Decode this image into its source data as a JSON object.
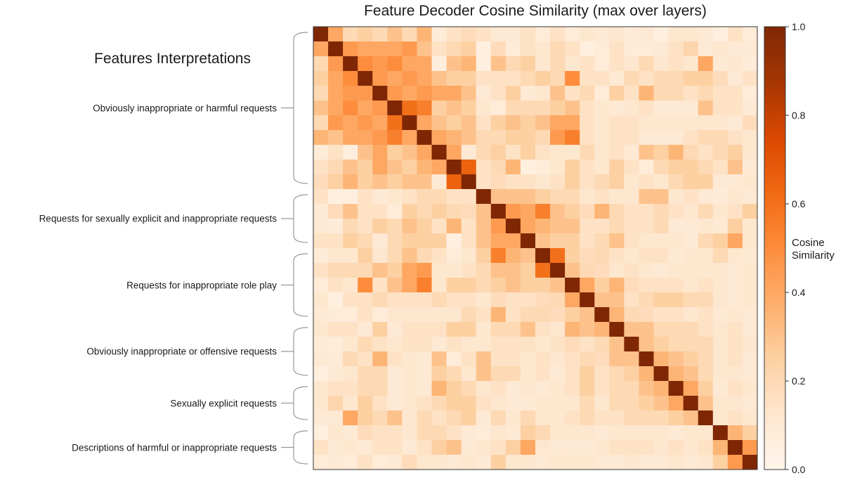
{
  "chart_data": {
    "type": "heatmap",
    "title": "Feature Decoder Cosine Similarity (max over layers)",
    "subtitle": "Features Interpretations",
    "colorbar": {
      "label": [
        "Cosine",
        "Similarity"
      ],
      "range": [
        0.0,
        1.0
      ],
      "ticks": [
        "0.0",
        "0.2",
        "0.4",
        "0.6",
        "0.8",
        "1.0"
      ],
      "colormap": "Oranges"
    },
    "n": 30,
    "groups": [
      {
        "label": "Obviously inappropriate or harmful requests",
        "start": 0,
        "end": 10
      },
      {
        "label": "Requests for sexually explicit and inappropriate requests",
        "start": 11,
        "end": 14
      },
      {
        "label": "Requests for inappropriate role play",
        "start": 15,
        "end": 19
      },
      {
        "label": "Obviously inappropriate or offensive requests",
        "start": 20,
        "end": 23
      },
      {
        "label": "Sexually explicit requests",
        "start": 24,
        "end": 26
      },
      {
        "label": "Descriptions of harmful or inappropriate requests",
        "start": 27,
        "end": 29
      }
    ],
    "matrix": [
      [
        1.0,
        0.4,
        0.2,
        0.25,
        0.2,
        0.3,
        0.2,
        0.35,
        0.08,
        0.15,
        0.18,
        0.15,
        0.1,
        0.1,
        0.15,
        0.08,
        0.15,
        0.08,
        0.12,
        0.1,
        0.12,
        0.08,
        0.1,
        0.05,
        0.12,
        0.12,
        0.1,
        0.05,
        0.15,
        0.08
      ],
      [
        0.4,
        1.0,
        0.45,
        0.4,
        0.4,
        0.4,
        0.45,
        0.3,
        0.15,
        0.2,
        0.25,
        0.05,
        0.18,
        0.08,
        0.15,
        0.12,
        0.2,
        0.15,
        0.05,
        0.08,
        0.15,
        0.08,
        0.08,
        0.1,
        0.15,
        0.22,
        0.1,
        0.12,
        0.1,
        0.1
      ],
      [
        0.2,
        0.45,
        1.0,
        0.5,
        0.45,
        0.5,
        0.4,
        0.4,
        0.06,
        0.3,
        0.35,
        0.05,
        0.3,
        0.2,
        0.25,
        0.12,
        0.2,
        0.12,
        0.15,
        0.08,
        0.15,
        0.12,
        0.2,
        0.12,
        0.15,
        0.12,
        0.4,
        0.1,
        0.12,
        0.08
      ],
      [
        0.25,
        0.4,
        0.5,
        1.0,
        0.45,
        0.4,
        0.45,
        0.4,
        0.3,
        0.25,
        0.25,
        0.15,
        0.15,
        0.15,
        0.2,
        0.25,
        0.2,
        0.5,
        0.15,
        0.15,
        0.1,
        0.2,
        0.15,
        0.2,
        0.2,
        0.25,
        0.25,
        0.18,
        0.1,
        0.15
      ],
      [
        0.2,
        0.4,
        0.45,
        0.45,
        1.0,
        0.45,
        0.4,
        0.45,
        0.4,
        0.4,
        0.3,
        0.1,
        0.15,
        0.25,
        0.1,
        0.12,
        0.3,
        0.15,
        0.2,
        0.08,
        0.25,
        0.15,
        0.35,
        0.2,
        0.2,
        0.15,
        0.2,
        0.15,
        0.15,
        0.08
      ],
      [
        0.3,
        0.4,
        0.5,
        0.4,
        0.45,
        1.0,
        0.6,
        0.55,
        0.25,
        0.3,
        0.25,
        0.12,
        0.08,
        0.2,
        0.2,
        0.2,
        0.25,
        0.3,
        0.15,
        0.12,
        0.1,
        0.12,
        0.15,
        0.1,
        0.1,
        0.1,
        0.3,
        0.15,
        0.15,
        0.1
      ],
      [
        0.2,
        0.45,
        0.4,
        0.45,
        0.4,
        0.6,
        1.0,
        0.4,
        0.3,
        0.25,
        0.3,
        0.15,
        0.25,
        0.3,
        0.25,
        0.3,
        0.4,
        0.4,
        0.15,
        0.12,
        0.15,
        0.15,
        0.12,
        0.12,
        0.12,
        0.12,
        0.12,
        0.12,
        0.1,
        0.18
      ],
      [
        0.35,
        0.3,
        0.4,
        0.4,
        0.45,
        0.55,
        0.4,
        1.0,
        0.4,
        0.35,
        0.3,
        0.2,
        0.2,
        0.25,
        0.25,
        0.2,
        0.45,
        0.55,
        0.15,
        0.12,
        0.15,
        0.15,
        0.1,
        0.1,
        0.1,
        0.15,
        0.2,
        0.2,
        0.15,
        0.12
      ],
      [
        0.08,
        0.15,
        0.06,
        0.3,
        0.4,
        0.25,
        0.3,
        0.4,
        1.0,
        0.4,
        0.1,
        0.2,
        0.25,
        0.15,
        0.25,
        0.15,
        0.12,
        0.12,
        0.2,
        0.12,
        0.15,
        0.1,
        0.3,
        0.25,
        0.35,
        0.2,
        0.15,
        0.2,
        0.25,
        0.12
      ],
      [
        0.15,
        0.2,
        0.3,
        0.25,
        0.4,
        0.3,
        0.25,
        0.35,
        0.4,
        1.0,
        0.65,
        0.15,
        0.2,
        0.35,
        0.05,
        0.08,
        0.12,
        0.25,
        0.15,
        0.12,
        0.25,
        0.15,
        0.08,
        0.2,
        0.25,
        0.25,
        0.2,
        0.15,
        0.3,
        0.1
      ],
      [
        0.18,
        0.25,
        0.35,
        0.25,
        0.3,
        0.25,
        0.3,
        0.3,
        0.1,
        0.65,
        1.0,
        0.15,
        0.18,
        0.15,
        0.15,
        0.12,
        0.15,
        0.25,
        0.15,
        0.2,
        0.25,
        0.12,
        0.15,
        0.12,
        0.2,
        0.25,
        0.25,
        0.1,
        0.1,
        0.12
      ],
      [
        0.15,
        0.05,
        0.05,
        0.15,
        0.1,
        0.12,
        0.15,
        0.2,
        0.2,
        0.15,
        0.15,
        1.0,
        0.3,
        0.3,
        0.3,
        0.25,
        0.2,
        0.2,
        0.12,
        0.15,
        0.12,
        0.12,
        0.3,
        0.3,
        0.12,
        0.15,
        0.1,
        0.08,
        0.12,
        0.1
      ],
      [
        0.1,
        0.18,
        0.3,
        0.15,
        0.15,
        0.08,
        0.25,
        0.2,
        0.25,
        0.2,
        0.18,
        0.3,
        1.0,
        0.45,
        0.4,
        0.55,
        0.3,
        0.25,
        0.18,
        0.35,
        0.2,
        0.15,
        0.15,
        0.2,
        0.15,
        0.12,
        0.2,
        0.12,
        0.15,
        0.25
      ],
      [
        0.1,
        0.08,
        0.2,
        0.15,
        0.25,
        0.2,
        0.3,
        0.25,
        0.15,
        0.35,
        0.15,
        0.3,
        0.45,
        1.0,
        0.4,
        0.35,
        0.3,
        0.3,
        0.15,
        0.15,
        0.2,
        0.15,
        0.15,
        0.2,
        0.1,
        0.1,
        0.12,
        0.1,
        0.25,
        0.12
      ],
      [
        0.15,
        0.15,
        0.25,
        0.2,
        0.1,
        0.2,
        0.25,
        0.25,
        0.25,
        0.05,
        0.15,
        0.3,
        0.4,
        0.4,
        1.0,
        0.3,
        0.25,
        0.25,
        0.15,
        0.2,
        0.3,
        0.15,
        0.12,
        0.12,
        0.12,
        0.1,
        0.2,
        0.25,
        0.4,
        0.12
      ],
      [
        0.08,
        0.12,
        0.12,
        0.25,
        0.12,
        0.2,
        0.3,
        0.2,
        0.15,
        0.08,
        0.12,
        0.25,
        0.55,
        0.35,
        0.3,
        1.0,
        0.6,
        0.25,
        0.18,
        0.2,
        0.15,
        0.12,
        0.15,
        0.15,
        0.1,
        0.12,
        0.12,
        0.2,
        0.12,
        0.1
      ],
      [
        0.15,
        0.2,
        0.2,
        0.2,
        0.3,
        0.25,
        0.4,
        0.45,
        0.12,
        0.12,
        0.15,
        0.2,
        0.3,
        0.3,
        0.25,
        0.6,
        1.0,
        0.3,
        0.2,
        0.18,
        0.12,
        0.15,
        0.12,
        0.1,
        0.12,
        0.12,
        0.12,
        0.12,
        0.1,
        0.12
      ],
      [
        0.08,
        0.15,
        0.12,
        0.5,
        0.15,
        0.3,
        0.4,
        0.55,
        0.12,
        0.25,
        0.25,
        0.2,
        0.25,
        0.3,
        0.25,
        0.25,
        0.3,
        1.0,
        0.4,
        0.25,
        0.35,
        0.18,
        0.15,
        0.15,
        0.15,
        0.12,
        0.15,
        0.12,
        0.1,
        0.12
      ],
      [
        0.12,
        0.05,
        0.15,
        0.15,
        0.2,
        0.15,
        0.15,
        0.15,
        0.2,
        0.15,
        0.15,
        0.12,
        0.18,
        0.15,
        0.15,
        0.18,
        0.2,
        0.4,
        1.0,
        0.3,
        0.3,
        0.15,
        0.2,
        0.25,
        0.25,
        0.2,
        0.2,
        0.12,
        0.1,
        0.12
      ],
      [
        0.1,
        0.08,
        0.08,
        0.15,
        0.08,
        0.12,
        0.12,
        0.12,
        0.12,
        0.12,
        0.2,
        0.15,
        0.35,
        0.15,
        0.2,
        0.2,
        0.18,
        0.25,
        0.3,
        1.0,
        0.35,
        0.2,
        0.18,
        0.15,
        0.15,
        0.12,
        0.15,
        0.1,
        0.12,
        0.1
      ],
      [
        0.12,
        0.15,
        0.15,
        0.1,
        0.25,
        0.1,
        0.15,
        0.15,
        0.15,
        0.25,
        0.25,
        0.12,
        0.2,
        0.2,
        0.3,
        0.15,
        0.12,
        0.35,
        0.3,
        0.35,
        1.0,
        0.3,
        0.3,
        0.2,
        0.2,
        0.2,
        0.15,
        0.12,
        0.15,
        0.1
      ],
      [
        0.08,
        0.08,
        0.12,
        0.2,
        0.15,
        0.12,
        0.15,
        0.15,
        0.1,
        0.15,
        0.12,
        0.12,
        0.15,
        0.15,
        0.15,
        0.12,
        0.15,
        0.18,
        0.15,
        0.2,
        0.3,
        1.0,
        0.3,
        0.25,
        0.2,
        0.2,
        0.2,
        0.12,
        0.15,
        0.12
      ],
      [
        0.1,
        0.08,
        0.2,
        0.15,
        0.35,
        0.15,
        0.12,
        0.1,
        0.3,
        0.08,
        0.15,
        0.3,
        0.15,
        0.15,
        0.12,
        0.15,
        0.12,
        0.15,
        0.2,
        0.18,
        0.3,
        0.3,
        1.0,
        0.35,
        0.3,
        0.25,
        0.2,
        0.12,
        0.15,
        0.1
      ],
      [
        0.05,
        0.1,
        0.12,
        0.2,
        0.2,
        0.1,
        0.12,
        0.1,
        0.25,
        0.2,
        0.12,
        0.3,
        0.2,
        0.2,
        0.12,
        0.15,
        0.1,
        0.15,
        0.25,
        0.15,
        0.2,
        0.25,
        0.35,
        1.0,
        0.35,
        0.3,
        0.2,
        0.12,
        0.12,
        0.1
      ],
      [
        0.12,
        0.15,
        0.15,
        0.2,
        0.2,
        0.1,
        0.12,
        0.1,
        0.35,
        0.25,
        0.2,
        0.12,
        0.15,
        0.1,
        0.12,
        0.1,
        0.12,
        0.15,
        0.25,
        0.15,
        0.2,
        0.2,
        0.3,
        0.35,
        1.0,
        0.4,
        0.25,
        0.1,
        0.15,
        0.12
      ],
      [
        0.12,
        0.22,
        0.12,
        0.25,
        0.15,
        0.1,
        0.12,
        0.15,
        0.2,
        0.25,
        0.25,
        0.15,
        0.12,
        0.1,
        0.1,
        0.12,
        0.12,
        0.12,
        0.2,
        0.12,
        0.2,
        0.2,
        0.25,
        0.3,
        0.4,
        1.0,
        0.3,
        0.12,
        0.12,
        0.1
      ],
      [
        0.1,
        0.1,
        0.4,
        0.25,
        0.2,
        0.3,
        0.12,
        0.2,
        0.15,
        0.2,
        0.25,
        0.1,
        0.2,
        0.12,
        0.2,
        0.12,
        0.12,
        0.15,
        0.2,
        0.15,
        0.15,
        0.2,
        0.2,
        0.2,
        0.25,
        0.3,
        1.0,
        0.12,
        0.15,
        0.12
      ],
      [
        0.05,
        0.12,
        0.1,
        0.18,
        0.15,
        0.15,
        0.12,
        0.2,
        0.2,
        0.15,
        0.1,
        0.08,
        0.12,
        0.1,
        0.25,
        0.2,
        0.12,
        0.12,
        0.12,
        0.1,
        0.12,
        0.12,
        0.12,
        0.12,
        0.1,
        0.12,
        0.12,
        1.0,
        0.35,
        0.25
      ],
      [
        0.15,
        0.1,
        0.12,
        0.1,
        0.15,
        0.15,
        0.1,
        0.15,
        0.25,
        0.3,
        0.1,
        0.12,
        0.15,
        0.25,
        0.4,
        0.12,
        0.1,
        0.1,
        0.1,
        0.12,
        0.15,
        0.15,
        0.15,
        0.12,
        0.15,
        0.12,
        0.15,
        0.35,
        1.0,
        0.45
      ],
      [
        0.08,
        0.1,
        0.08,
        0.15,
        0.08,
        0.1,
        0.18,
        0.12,
        0.12,
        0.1,
        0.12,
        0.1,
        0.25,
        0.12,
        0.12,
        0.1,
        0.12,
        0.12,
        0.12,
        0.1,
        0.1,
        0.12,
        0.1,
        0.1,
        0.12,
        0.1,
        0.12,
        0.25,
        0.45,
        1.0
      ]
    ]
  }
}
